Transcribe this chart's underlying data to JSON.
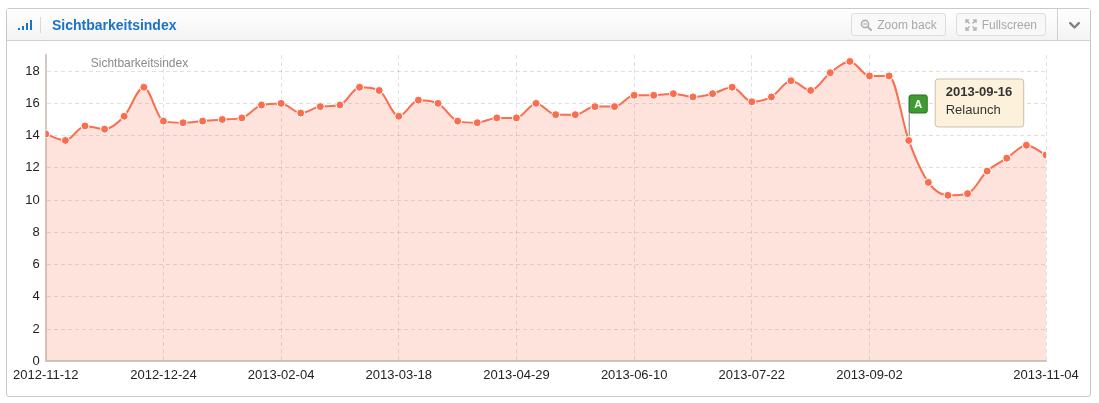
{
  "chart_data": {
    "type": "area",
    "title": "Sichtbarkeitsindex",
    "subtitle": "Sichtbarkeitsindex",
    "x": [
      "2012-11-12",
      "2012-11-19",
      "2012-11-26",
      "2012-12-03",
      "2012-12-10",
      "2012-12-17",
      "2012-12-24",
      "2012-12-31",
      "2013-01-07",
      "2013-01-14",
      "2013-01-21",
      "2013-01-28",
      "2013-02-04",
      "2013-02-11",
      "2013-02-18",
      "2013-02-25",
      "2013-03-04",
      "2013-03-11",
      "2013-03-18",
      "2013-03-25",
      "2013-04-01",
      "2013-04-08",
      "2013-04-15",
      "2013-04-22",
      "2013-04-29",
      "2013-05-06",
      "2013-05-13",
      "2013-05-20",
      "2013-05-27",
      "2013-06-03",
      "2013-06-10",
      "2013-06-17",
      "2013-06-24",
      "2013-07-01",
      "2013-07-08",
      "2013-07-15",
      "2013-07-22",
      "2013-07-29",
      "2013-08-05",
      "2013-08-12",
      "2013-08-19",
      "2013-08-26",
      "2013-09-02",
      "2013-09-09",
      "2013-09-16",
      "2013-09-23",
      "2013-09-30",
      "2013-10-07",
      "2013-10-14",
      "2013-10-21",
      "2013-10-28",
      "2013-11-04"
    ],
    "values": [
      14.1,
      13.7,
      14.6,
      14.4,
      15.2,
      17.0,
      14.9,
      14.8,
      14.9,
      15.0,
      15.1,
      15.9,
      16.0,
      15.4,
      15.8,
      15.9,
      17.0,
      16.8,
      15.2,
      16.2,
      16.0,
      14.9,
      14.8,
      15.1,
      15.1,
      16.0,
      15.3,
      15.3,
      15.8,
      15.8,
      16.5,
      16.5,
      16.6,
      16.4,
      16.6,
      17.0,
      16.1,
      16.4,
      17.4,
      16.8,
      17.9,
      18.6,
      17.7,
      17.7,
      13.7,
      11.1,
      10.3,
      10.4,
      11.8,
      12.6,
      13.4,
      12.8
    ],
    "color": "#fa6e50",
    "xlim": [
      "2012-11-12",
      "2013-11-04"
    ],
    "xticks": [
      "2012-11-12",
      "2012-12-24",
      "2013-02-04",
      "2013-03-18",
      "2013-04-29",
      "2013-06-10",
      "2013-07-22",
      "2013-09-02",
      "2013-11-04"
    ],
    "ylim": [
      0,
      19
    ],
    "yticks": [
      0,
      2,
      4,
      6,
      8,
      10,
      12,
      14,
      16,
      18
    ],
    "grid": true,
    "marker": "circle",
    "annotations": [
      {
        "text": "A",
        "x": "2013-09-16",
        "y": 13.7
      },
      "2013-09-16",
      "Relaunch",
      "Zoom back",
      "Fullscreen"
    ]
  }
}
